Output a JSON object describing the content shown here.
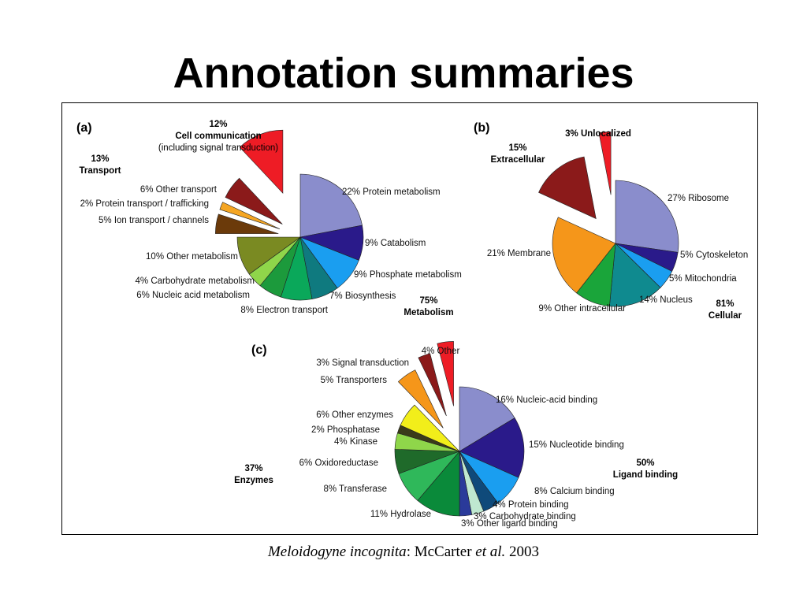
{
  "title": "Annotation summaries",
  "caption": {
    "species": "Meloidogyne incognita",
    "sep": ": McCarter ",
    "etal": "et al.",
    "year": " 2003"
  },
  "chart_data": [
    {
      "type": "pie",
      "panel_label": "(a)",
      "slices": [
        {
          "label": "22% Protein metabolism",
          "value": 22,
          "color": "#8a8dcc"
        },
        {
          "label": "9% Catabolism",
          "value": 9,
          "color": "#2a1a8a"
        },
        {
          "label": "9% Phosphate metabolism",
          "value": 9,
          "color": "#1a9ef0"
        },
        {
          "label": "7% Biosynthesis",
          "value": 7,
          "color": "#0f7a7f"
        },
        {
          "label": "8% Electron transport",
          "value": 8,
          "color": "#0aa85a"
        },
        {
          "label": "6% Nucleic acid metabolism",
          "value": 6,
          "color": "#1c9a3c"
        },
        {
          "label": "4% Carbohydrate metabolism",
          "value": 4,
          "color": "#8fd64a"
        },
        {
          "label": "10% Other metabolism",
          "value": 10,
          "color": "#7a8a22"
        },
        {
          "label": "5% Ion transport / channels",
          "value": 5,
          "color": "#6b3a0a"
        },
        {
          "label": "2% Protein transport / trafficking",
          "value": 2,
          "color": "#f5a623"
        },
        {
          "label": "6% Other transport",
          "value": 6,
          "color": "#8b1a1a"
        },
        {
          "label": "Cell communication",
          "value": 12,
          "color": "#ee1c25"
        }
      ],
      "groups": [
        {
          "pct": "12%",
          "name": "Cell communication",
          "sub": "(including signal transduction)"
        },
        {
          "pct": "13%",
          "name": "Transport"
        },
        {
          "pct": "75%",
          "name": "Metabolism"
        }
      ]
    },
    {
      "type": "pie",
      "panel_label": "(b)",
      "slices": [
        {
          "label": "27% Ribosome",
          "value": 27,
          "color": "#8a8dcc"
        },
        {
          "label": "5% Cytoskeleton",
          "value": 5,
          "color": "#2a1a8a"
        },
        {
          "label": "5% Mitochondria",
          "value": 5,
          "color": "#1a9ef0"
        },
        {
          "label": "14% Nucleus",
          "value": 14,
          "color": "#0f8a8f"
        },
        {
          "label": "9% Other intracellular",
          "value": 9,
          "color": "#1aa53a"
        },
        {
          "label": "21% Membrane",
          "value": 21,
          "color": "#f5961a"
        },
        {
          "label": "Extracellular",
          "value": 15,
          "color": "#8b1a1a"
        },
        {
          "label": "3% Unlocalized",
          "value": 3,
          "color": "#ee1c25"
        }
      ],
      "groups": [
        {
          "pct": "15%",
          "name": "Extracellular"
        },
        {
          "pct": "81%",
          "name": "Cellular"
        }
      ]
    },
    {
      "type": "pie",
      "panel_label": "(c)",
      "slices": [
        {
          "label": "16% Nucleic-acid binding",
          "value": 16,
          "color": "#8a8dcc"
        },
        {
          "label": "15% Nucleotide binding",
          "value": 15,
          "color": "#2a1a8a"
        },
        {
          "label": "8% Calcium binding",
          "value": 8,
          "color": "#1a9ef0"
        },
        {
          "label": "4% Protein binding",
          "value": 4,
          "color": "#0f4a7a"
        },
        {
          "label": "3% Carbohydrate binding",
          "value": 3,
          "color": "#bfe8d0"
        },
        {
          "label": "3% Other ligand binding",
          "value": 3,
          "color": "#2a3a9a"
        },
        {
          "label": "11% Hydrolase",
          "value": 11,
          "color": "#0a8a3a"
        },
        {
          "label": "8% Transferase",
          "value": 8,
          "color": "#2fb85a"
        },
        {
          "label": "6% Oxidoreductase",
          "value": 6,
          "color": "#1f6a2a"
        },
        {
          "label": "4% Kinase",
          "value": 4,
          "color": "#8fd64a"
        },
        {
          "label": "2% Phosphatase",
          "value": 2,
          "color": "#3a3a1a"
        },
        {
          "label": "6% Other enzymes",
          "value": 6,
          "color": "#f2ee1a"
        },
        {
          "label": "5% Transporters",
          "value": 5,
          "color": "#f5961a"
        },
        {
          "label": "3% Signal transduction",
          "value": 3,
          "color": "#8b1a1a"
        },
        {
          "label": "4% Other",
          "value": 4,
          "color": "#ee1c25"
        }
      ],
      "groups": [
        {
          "pct": "37%",
          "name": "Enzymes"
        },
        {
          "pct": "50%",
          "name": "Ligand binding"
        }
      ]
    }
  ]
}
